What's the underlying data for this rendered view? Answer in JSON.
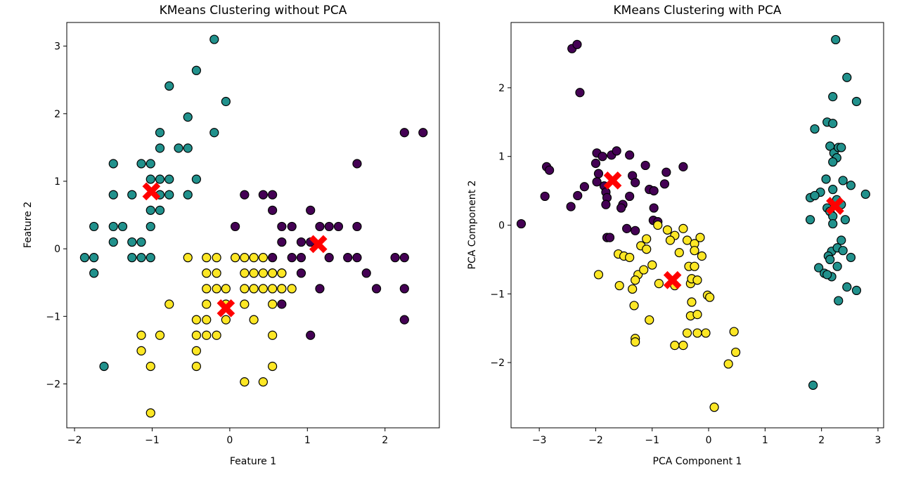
{
  "chart_data": [
    {
      "type": "scatter",
      "title": "KMeans Clustering without PCA",
      "xlabel": "Feature 1",
      "ylabel": "Feature 2",
      "xlim": [
        -2.1,
        2.7
      ],
      "ylim": [
        -2.65,
        3.35
      ],
      "xticks": [
        -2,
        -1,
        0,
        1,
        2
      ],
      "yticks": [
        -2,
        -1,
        0,
        1,
        2,
        3
      ],
      "grid": false,
      "colors": {
        "teal": "#21918c",
        "purple": "#440154",
        "yellow": "#fde725",
        "centroid": "#ff0000"
      },
      "series": [
        {
          "color": "teal",
          "points": [
            [
              -0.2,
              3.1
            ],
            [
              -0.43,
              2.64
            ],
            [
              -0.05,
              2.18
            ],
            [
              -0.78,
              2.41
            ],
            [
              -0.54,
              1.95
            ],
            [
              -0.9,
              1.72
            ],
            [
              -0.2,
              1.72
            ],
            [
              -0.66,
              1.49
            ],
            [
              -0.54,
              1.49
            ],
            [
              -0.9,
              1.49
            ],
            [
              -0.43,
              1.03
            ],
            [
              -1.5,
              1.26
            ],
            [
              -1.14,
              1.26
            ],
            [
              -1.02,
              1.26
            ],
            [
              -1.02,
              1.03
            ],
            [
              -0.9,
              1.03
            ],
            [
              -0.78,
              1.03
            ],
            [
              -1.26,
              0.8
            ],
            [
              -1.5,
              0.8
            ],
            [
              -0.9,
              0.8
            ],
            [
              -0.78,
              0.8
            ],
            [
              -0.54,
              0.8
            ],
            [
              -1.02,
              0.57
            ],
            [
              -0.9,
              0.57
            ],
            [
              -1.75,
              0.33
            ],
            [
              -1.5,
              0.33
            ],
            [
              -1.38,
              0.33
            ],
            [
              -1.02,
              0.33
            ],
            [
              -1.26,
              0.1
            ],
            [
              -1.14,
              0.1
            ],
            [
              -1.5,
              0.1
            ],
            [
              -1.87,
              -0.13
            ],
            [
              -1.75,
              -0.13
            ],
            [
              -1.26,
              -0.13
            ],
            [
              -1.14,
              -0.13
            ],
            [
              -1.02,
              -0.13
            ],
            [
              -1.75,
              -0.36
            ],
            [
              -1.62,
              -1.74
            ]
          ]
        },
        {
          "color": "purple",
          "points": [
            [
              0.19,
              0.8
            ],
            [
              0.43,
              0.8
            ],
            [
              0.55,
              0.8
            ],
            [
              0.55,
              0.57
            ],
            [
              1.04,
              0.57
            ],
            [
              0.07,
              0.33
            ],
            [
              0.67,
              0.33
            ],
            [
              0.8,
              0.33
            ],
            [
              1.16,
              0.33
            ],
            [
              1.28,
              0.33
            ],
            [
              1.4,
              0.33
            ],
            [
              1.64,
              0.33
            ],
            [
              1.64,
              1.26
            ],
            [
              0.67,
              0.1
            ],
            [
              0.92,
              0.1
            ],
            [
              1.04,
              0.1
            ],
            [
              0.55,
              -0.13
            ],
            [
              0.8,
              -0.13
            ],
            [
              0.92,
              -0.13
            ],
            [
              1.28,
              -0.13
            ],
            [
              1.52,
              -0.13
            ],
            [
              1.64,
              -0.13
            ],
            [
              2.13,
              -0.13
            ],
            [
              2.25,
              -0.13
            ],
            [
              0.55,
              -0.36
            ],
            [
              0.67,
              -0.36
            ],
            [
              0.92,
              -0.36
            ],
            [
              1.76,
              -0.36
            ],
            [
              0.67,
              -0.59
            ],
            [
              1.16,
              -0.59
            ],
            [
              1.89,
              -0.59
            ],
            [
              2.25,
              -0.59
            ],
            [
              0.67,
              -0.82
            ],
            [
              1.04,
              -1.28
            ],
            [
              2.25,
              -1.05
            ],
            [
              2.25,
              1.72
            ],
            [
              2.49,
              1.72
            ]
          ]
        },
        {
          "color": "yellow",
          "points": [
            [
              -0.54,
              -0.13
            ],
            [
              -0.3,
              -0.13
            ],
            [
              -0.17,
              -0.13
            ],
            [
              0.07,
              -0.13
            ],
            [
              0.19,
              -0.13
            ],
            [
              0.31,
              -0.13
            ],
            [
              0.43,
              -0.13
            ],
            [
              -0.3,
              -0.36
            ],
            [
              -0.17,
              -0.36
            ],
            [
              0.19,
              -0.36
            ],
            [
              0.31,
              -0.36
            ],
            [
              0.43,
              -0.36
            ],
            [
              0.55,
              -0.36
            ],
            [
              0.67,
              -0.36
            ],
            [
              -0.3,
              -0.59
            ],
            [
              -0.17,
              -0.59
            ],
            [
              -0.05,
              -0.59
            ],
            [
              0.19,
              -0.59
            ],
            [
              0.31,
              -0.59
            ],
            [
              0.43,
              -0.59
            ],
            [
              0.55,
              -0.59
            ],
            [
              0.67,
              -0.59
            ],
            [
              0.8,
              -0.59
            ],
            [
              -0.78,
              -0.82
            ],
            [
              -0.3,
              -0.82
            ],
            [
              -0.05,
              -0.82
            ],
            [
              0.19,
              -0.82
            ],
            [
              0.55,
              -0.82
            ],
            [
              -0.43,
              -1.05
            ],
            [
              -0.3,
              -1.05
            ],
            [
              -0.05,
              -1.05
            ],
            [
              0.31,
              -1.05
            ],
            [
              -1.14,
              -1.28
            ],
            [
              -0.9,
              -1.28
            ],
            [
              -0.43,
              -1.28
            ],
            [
              -0.3,
              -1.28
            ],
            [
              -0.17,
              -1.28
            ],
            [
              0.55,
              -1.28
            ],
            [
              -1.14,
              -1.51
            ],
            [
              -0.43,
              -1.51
            ],
            [
              -1.02,
              -1.74
            ],
            [
              -0.43,
              -1.74
            ],
            [
              0.55,
              -1.74
            ],
            [
              0.19,
              -1.97
            ],
            [
              0.43,
              -1.97
            ],
            [
              -1.02,
              -2.43
            ]
          ]
        }
      ],
      "centroids": [
        [
          -1.01,
          0.85
        ],
        [
          1.14,
          0.07
        ],
        [
          -0.05,
          -0.88
        ]
      ]
    },
    {
      "type": "scatter",
      "title": "KMeans Clustering with PCA",
      "xlabel": "PCA Component 1",
      "ylabel": "PCA Component 2",
      "xlim": [
        -3.5,
        3.1
      ],
      "ylim": [
        -2.95,
        2.95
      ],
      "xticks": [
        -3,
        -2,
        -1,
        0,
        1,
        2,
        3
      ],
      "yticks": [
        -2,
        -1,
        0,
        1,
        2
      ],
      "grid": false,
      "colors": {
        "teal": "#21918c",
        "purple": "#440154",
        "yellow": "#fde725",
        "centroid": "#ff0000"
      },
      "series": [
        {
          "color": "purple",
          "points": [
            [
              -2.42,
              2.57
            ],
            [
              -2.33,
              2.63
            ],
            [
              -2.28,
              1.93
            ],
            [
              -2.87,
              0.85
            ],
            [
              -2.82,
              0.8
            ],
            [
              -2.9,
              0.42
            ],
            [
              -2.44,
              0.27
            ],
            [
              -3.32,
              0.02
            ],
            [
              -2.32,
              0.43
            ],
            [
              -2.2,
              0.56
            ],
            [
              -1.98,
              1.05
            ],
            [
              -1.88,
              1.0
            ],
            [
              -2.0,
              0.9
            ],
            [
              -1.95,
              0.75
            ],
            [
              -1.98,
              0.63
            ],
            [
              -1.85,
              0.57
            ],
            [
              -1.82,
              0.48
            ],
            [
              -1.8,
              0.4
            ],
            [
              -1.82,
              0.3
            ],
            [
              -1.72,
              1.02
            ],
            [
              -1.63,
              1.08
            ],
            [
              -1.4,
              1.02
            ],
            [
              -1.12,
              0.87
            ],
            [
              -1.05,
              0.52
            ],
            [
              -0.97,
              0.5
            ],
            [
              -1.35,
              0.72
            ],
            [
              -1.3,
              0.62
            ],
            [
              -1.4,
              0.42
            ],
            [
              -1.52,
              0.3
            ],
            [
              -1.55,
              0.25
            ],
            [
              -0.75,
              0.77
            ],
            [
              -0.78,
              0.6
            ],
            [
              -0.97,
              0.25
            ],
            [
              -0.45,
              0.85
            ],
            [
              -1.8,
              -0.18
            ],
            [
              -1.75,
              -0.18
            ],
            [
              -1.45,
              -0.05
            ],
            [
              -1.3,
              -0.08
            ],
            [
              -0.98,
              0.07
            ],
            [
              -0.9,
              0.05
            ]
          ]
        },
        {
          "color": "yellow",
          "points": [
            [
              -0.9,
              0.0
            ],
            [
              -0.73,
              -0.07
            ],
            [
              -0.6,
              -0.15
            ],
            [
              -0.45,
              -0.05
            ],
            [
              -0.68,
              -0.22
            ],
            [
              -0.52,
              -0.4
            ],
            [
              -0.38,
              -0.22
            ],
            [
              -0.25,
              -0.27
            ],
            [
              -0.15,
              -0.18
            ],
            [
              -0.25,
              -0.37
            ],
            [
              -0.12,
              -0.45
            ],
            [
              -1.1,
              -0.2
            ],
            [
              -1.2,
              -0.3
            ],
            [
              -1.1,
              -0.35
            ],
            [
              -1.6,
              -0.42
            ],
            [
              -1.5,
              -0.45
            ],
            [
              -1.4,
              -0.47
            ],
            [
              -1.25,
              -0.72
            ],
            [
              -1.0,
              -0.58
            ],
            [
              -1.15,
              -0.65
            ],
            [
              -1.3,
              -0.8
            ],
            [
              -1.35,
              -0.93
            ],
            [
              -1.95,
              -0.72
            ],
            [
              -1.58,
              -0.88
            ],
            [
              -0.88,
              -0.85
            ],
            [
              -0.6,
              -0.88
            ],
            [
              -0.35,
              -0.6
            ],
            [
              -0.25,
              -0.6
            ],
            [
              -0.32,
              -0.85
            ],
            [
              -0.3,
              -0.78
            ],
            [
              -0.2,
              -0.8
            ],
            [
              -0.3,
              -1.12
            ],
            [
              -0.32,
              -1.32
            ],
            [
              -0.2,
              -1.3
            ],
            [
              -0.02,
              -1.02
            ],
            [
              0.02,
              -1.05
            ],
            [
              -1.32,
              -1.17
            ],
            [
              -1.05,
              -1.38
            ],
            [
              -1.3,
              -1.65
            ],
            [
              -1.3,
              -1.7
            ],
            [
              -0.38,
              -1.57
            ],
            [
              -0.2,
              -1.57
            ],
            [
              -0.05,
              -1.57
            ],
            [
              -0.45,
              -1.75
            ],
            [
              -0.6,
              -1.75
            ],
            [
              0.45,
              -1.55
            ],
            [
              0.48,
              -1.85
            ],
            [
              0.35,
              -2.02
            ],
            [
              0.1,
              -2.65
            ]
          ]
        },
        {
          "color": "teal",
          "points": [
            [
              2.25,
              2.7
            ],
            [
              2.45,
              2.15
            ],
            [
              2.2,
              1.87
            ],
            [
              2.62,
              1.8
            ],
            [
              2.1,
              1.5
            ],
            [
              2.2,
              1.48
            ],
            [
              1.88,
              1.4
            ],
            [
              2.15,
              1.15
            ],
            [
              2.22,
              1.05
            ],
            [
              2.3,
              1.13
            ],
            [
              2.35,
              1.13
            ],
            [
              2.27,
              0.98
            ],
            [
              2.2,
              0.92
            ],
            [
              2.08,
              0.67
            ],
            [
              2.2,
              0.52
            ],
            [
              2.38,
              0.65
            ],
            [
              2.52,
              0.58
            ],
            [
              2.78,
              0.45
            ],
            [
              1.8,
              0.4
            ],
            [
              1.98,
              0.48
            ],
            [
              1.88,
              0.43
            ],
            [
              2.1,
              0.25
            ],
            [
              2.15,
              0.2
            ],
            [
              2.27,
              0.37
            ],
            [
              2.35,
              0.3
            ],
            [
              2.2,
              0.13
            ],
            [
              2.42,
              0.08
            ],
            [
              1.8,
              0.08
            ],
            [
              2.2,
              0.02
            ],
            [
              2.35,
              -0.22
            ],
            [
              2.18,
              -0.38
            ],
            [
              2.28,
              -0.33
            ],
            [
              2.38,
              -0.37
            ],
            [
              2.12,
              -0.45
            ],
            [
              2.15,
              -0.5
            ],
            [
              2.52,
              -0.47
            ],
            [
              2.28,
              -0.6
            ],
            [
              1.95,
              -0.62
            ],
            [
              2.05,
              -0.7
            ],
            [
              2.18,
              -0.75
            ],
            [
              2.1,
              -0.72
            ],
            [
              2.45,
              -0.9
            ],
            [
              2.62,
              -0.95
            ],
            [
              2.3,
              -1.1
            ],
            [
              1.85,
              -2.33
            ]
          ]
        }
      ],
      "centroids": [
        [
          -1.7,
          0.65
        ],
        [
          -0.64,
          -0.8
        ],
        [
          2.24,
          0.28
        ]
      ]
    }
  ]
}
